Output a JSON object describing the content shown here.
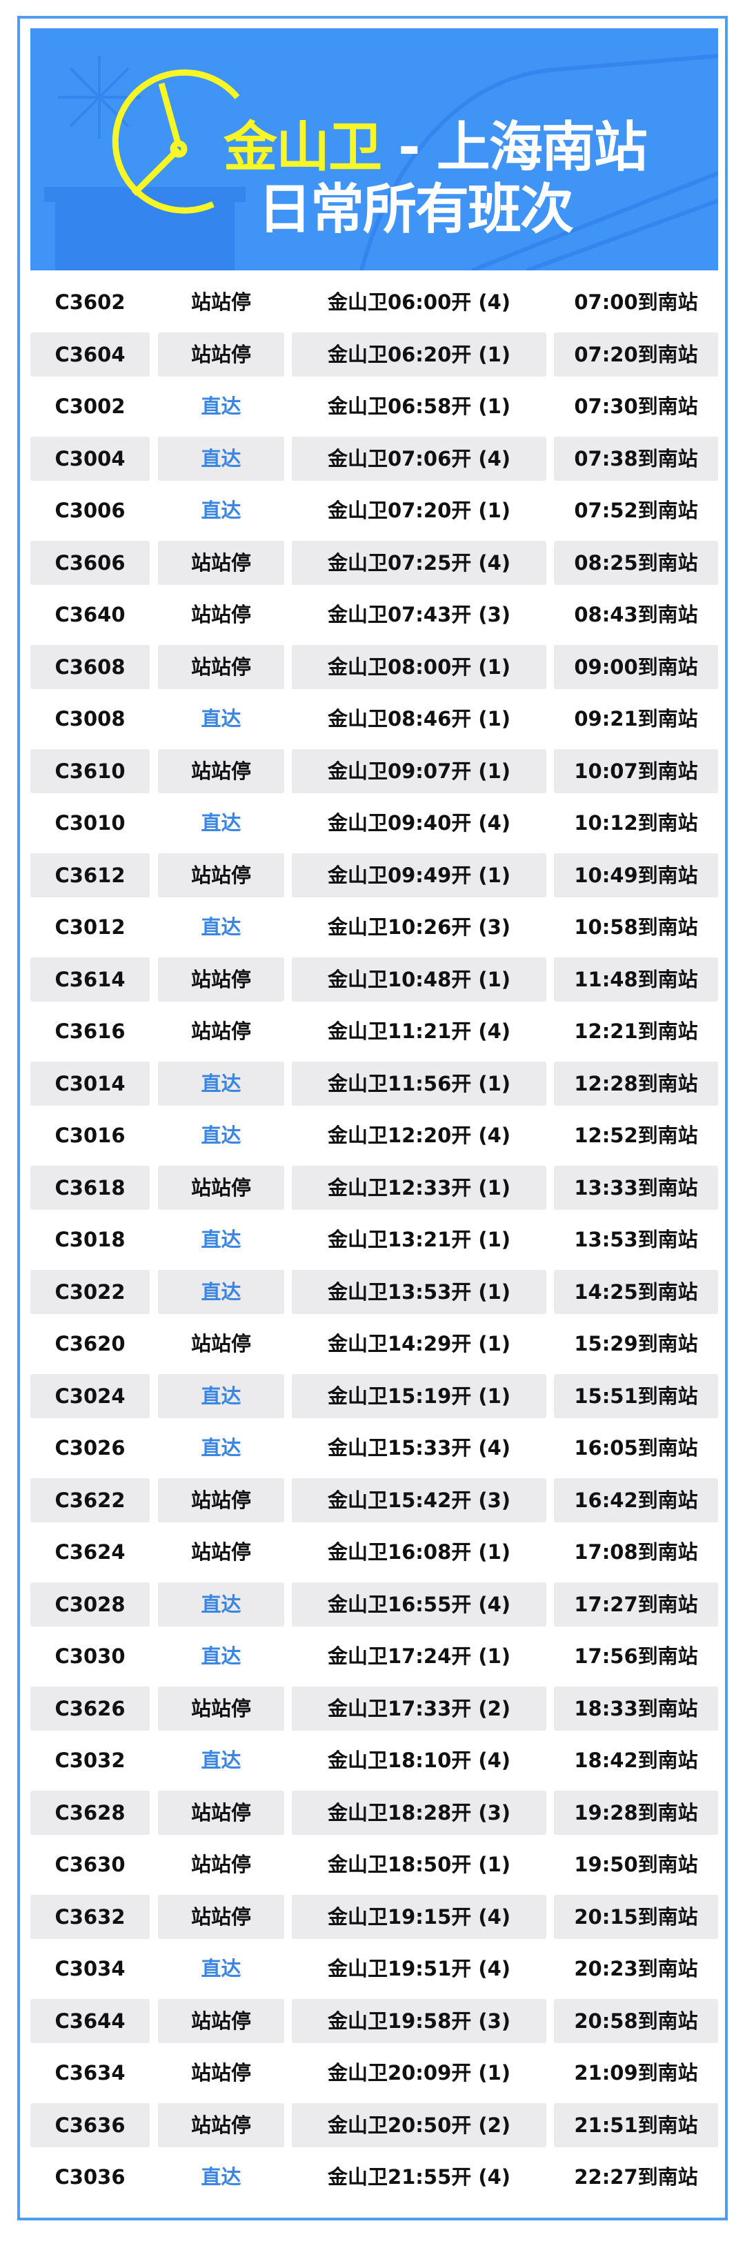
{
  "banner": {
    "title_origin": "金山卫",
    "title_separator": " - ",
    "title_destination": "上海南站",
    "subtitle": "日常所有班次"
  },
  "colors": {
    "frame": "#4f9cf2",
    "banner": "#3f94f5",
    "highlight": "#f8f624",
    "direct": "#3a86e0",
    "row_alt": "#ebebed"
  },
  "schedule": [
    {
      "train": "C3602",
      "type": "站站停",
      "depart": "金山卫06:00开 (4)",
      "arrive": "07:00到南站"
    },
    {
      "train": "C3604",
      "type": "站站停",
      "depart": "金山卫06:20开 (1)",
      "arrive": "07:20到南站"
    },
    {
      "train": "C3002",
      "type": "直达",
      "depart": "金山卫06:58开 (1)",
      "arrive": "07:30到南站"
    },
    {
      "train": "C3004",
      "type": "直达",
      "depart": "金山卫07:06开 (4)",
      "arrive": "07:38到南站"
    },
    {
      "train": "C3006",
      "type": "直达",
      "depart": "金山卫07:20开 (1)",
      "arrive": "07:52到南站"
    },
    {
      "train": "C3606",
      "type": "站站停",
      "depart": "金山卫07:25开 (4)",
      "arrive": "08:25到南站"
    },
    {
      "train": "C3640",
      "type": "站站停",
      "depart": "金山卫07:43开 (3)",
      "arrive": "08:43到南站"
    },
    {
      "train": "C3608",
      "type": "站站停",
      "depart": "金山卫08:00开 (1)",
      "arrive": "09:00到南站"
    },
    {
      "train": "C3008",
      "type": "直达",
      "depart": "金山卫08:46开 (1)",
      "arrive": "09:21到南站"
    },
    {
      "train": "C3610",
      "type": "站站停",
      "depart": "金山卫09:07开 (1)",
      "arrive": "10:07到南站"
    },
    {
      "train": "C3010",
      "type": "直达",
      "depart": "金山卫09:40开 (4)",
      "arrive": "10:12到南站"
    },
    {
      "train": "C3612",
      "type": "站站停",
      "depart": "金山卫09:49开 (1)",
      "arrive": "10:49到南站"
    },
    {
      "train": "C3012",
      "type": "直达",
      "depart": "金山卫10:26开 (3)",
      "arrive": "10:58到南站"
    },
    {
      "train": "C3614",
      "type": "站站停",
      "depart": "金山卫10:48开 (1)",
      "arrive": "11:48到南站"
    },
    {
      "train": "C3616",
      "type": "站站停",
      "depart": "金山卫11:21开 (4)",
      "arrive": "12:21到南站"
    },
    {
      "train": "C3014",
      "type": "直达",
      "depart": "金山卫11:56开 (1)",
      "arrive": "12:28到南站"
    },
    {
      "train": "C3016",
      "type": "直达",
      "depart": "金山卫12:20开 (4)",
      "arrive": "12:52到南站"
    },
    {
      "train": "C3618",
      "type": "站站停",
      "depart": "金山卫12:33开 (1)",
      "arrive": "13:33到南站"
    },
    {
      "train": "C3018",
      "type": "直达",
      "depart": "金山卫13:21开 (1)",
      "arrive": "13:53到南站"
    },
    {
      "train": "C3022",
      "type": "直达",
      "depart": "金山卫13:53开 (1)",
      "arrive": "14:25到南站"
    },
    {
      "train": "C3620",
      "type": "站站停",
      "depart": "金山卫14:29开 (1)",
      "arrive": "15:29到南站"
    },
    {
      "train": "C3024",
      "type": "直达",
      "depart": "金山卫15:19开 (1)",
      "arrive": "15:51到南站"
    },
    {
      "train": "C3026",
      "type": "直达",
      "depart": "金山卫15:33开 (4)",
      "arrive": "16:05到南站"
    },
    {
      "train": "C3622",
      "type": "站站停",
      "depart": "金山卫15:42开 (3)",
      "arrive": "16:42到南站"
    },
    {
      "train": "C3624",
      "type": "站站停",
      "depart": "金山卫16:08开 (1)",
      "arrive": "17:08到南站"
    },
    {
      "train": "C3028",
      "type": "直达",
      "depart": "金山卫16:55开 (4)",
      "arrive": "17:27到南站"
    },
    {
      "train": "C3030",
      "type": "直达",
      "depart": "金山卫17:24开 (1)",
      "arrive": "17:56到南站"
    },
    {
      "train": "C3626",
      "type": "站站停",
      "depart": "金山卫17:33开 (2)",
      "arrive": "18:33到南站"
    },
    {
      "train": "C3032",
      "type": "直达",
      "depart": "金山卫18:10开 (4)",
      "arrive": "18:42到南站"
    },
    {
      "train": "C3628",
      "type": "站站停",
      "depart": "金山卫18:28开 (3)",
      "arrive": "19:28到南站"
    },
    {
      "train": "C3630",
      "type": "站站停",
      "depart": "金山卫18:50开 (1)",
      "arrive": "19:50到南站"
    },
    {
      "train": "C3632",
      "type": "站站停",
      "depart": "金山卫19:15开 (4)",
      "arrive": "20:15到南站"
    },
    {
      "train": "C3034",
      "type": "直达",
      "depart": "金山卫19:51开 (4)",
      "arrive": "20:23到南站"
    },
    {
      "train": "C3644",
      "type": "站站停",
      "depart": "金山卫19:58开 (3)",
      "arrive": "20:58到南站"
    },
    {
      "train": "C3634",
      "type": "站站停",
      "depart": "金山卫20:09开 (1)",
      "arrive": "21:09到南站"
    },
    {
      "train": "C3636",
      "type": "站站停",
      "depart": "金山卫20:50开 (2)",
      "arrive": "21:51到南站"
    },
    {
      "train": "C3036",
      "type": "直达",
      "depart": "金山卫21:55开 (4)",
      "arrive": "22:27到南站"
    }
  ]
}
